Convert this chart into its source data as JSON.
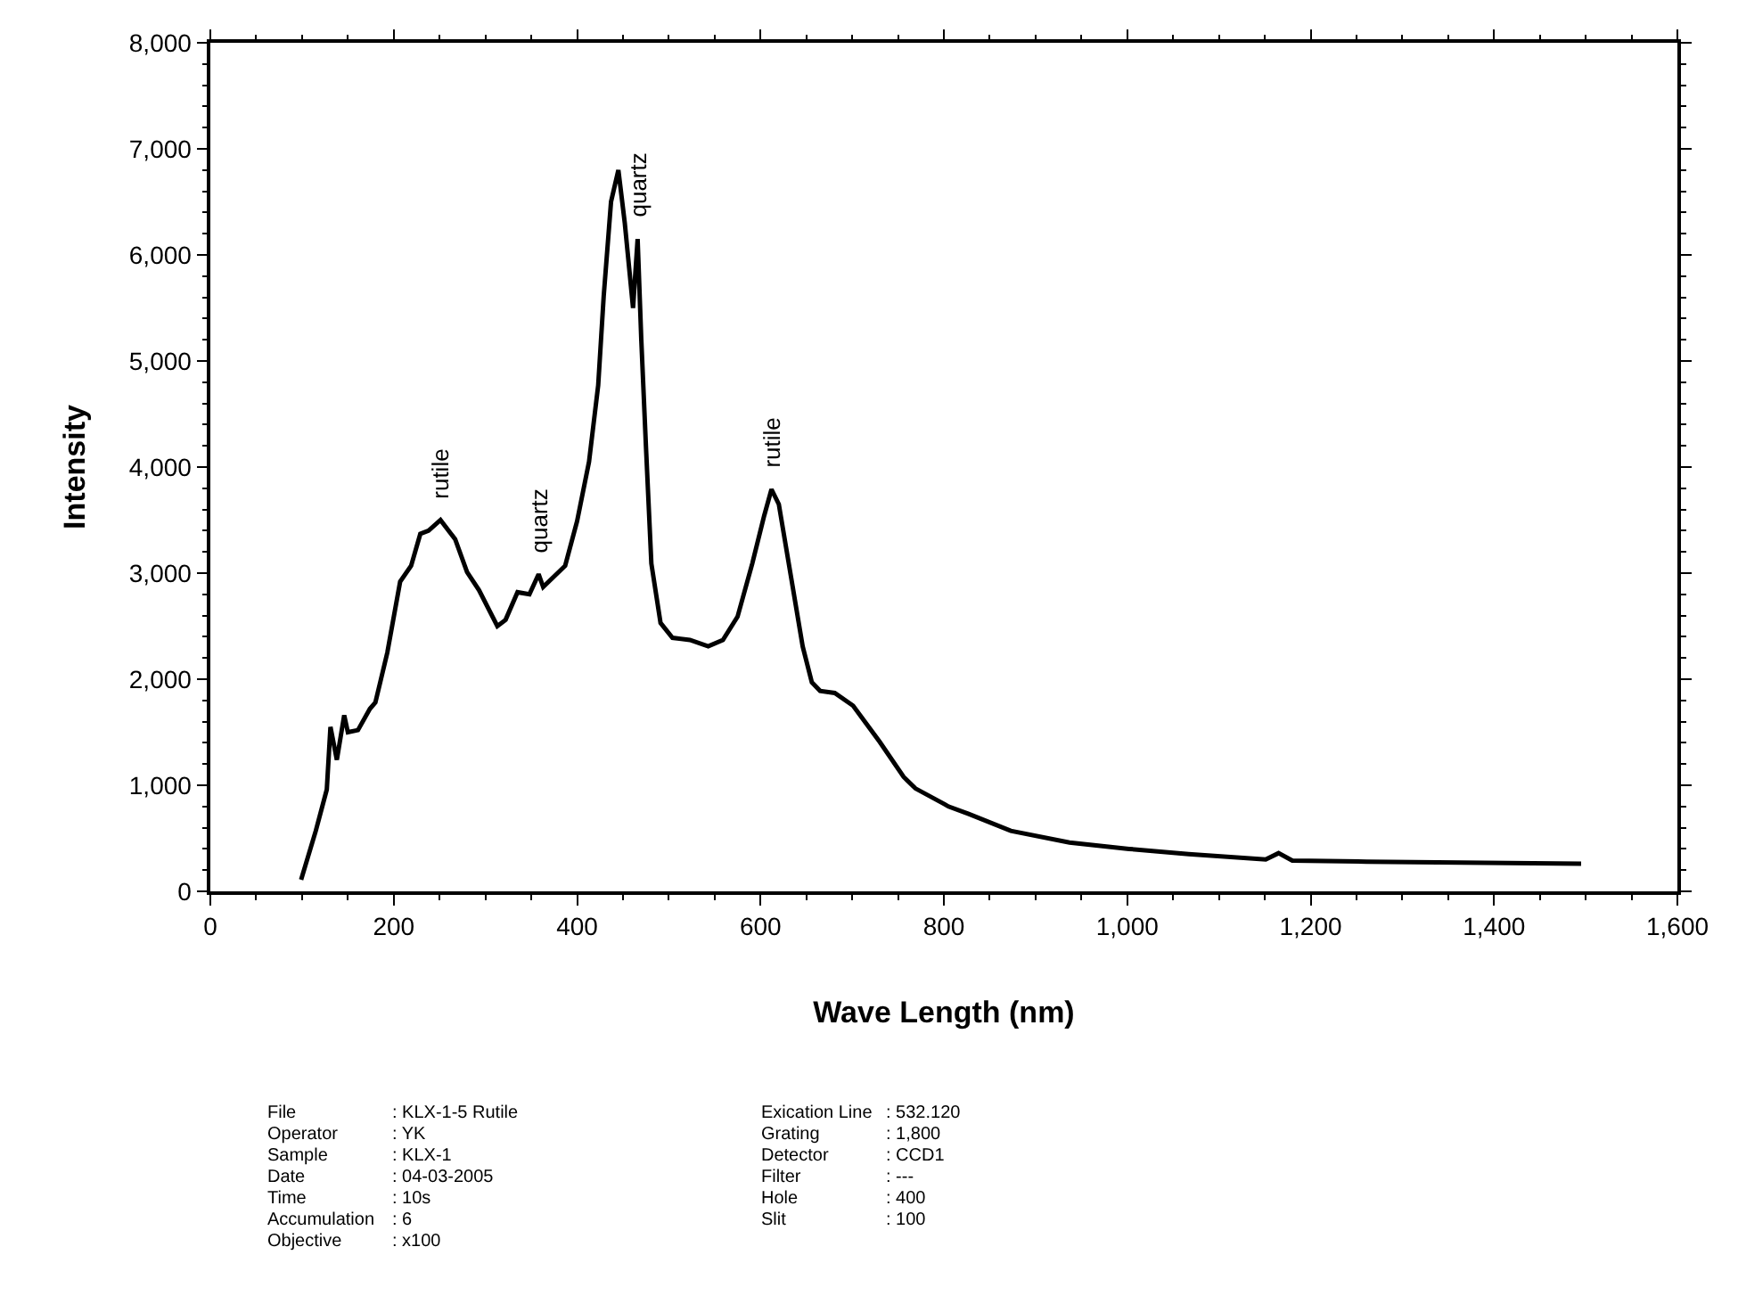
{
  "chart_data": {
    "type": "line",
    "xlabel": "Wave Length (nm)",
    "ylabel": "Intensity",
    "xlim": [
      0,
      1600
    ],
    "xticks": [
      0,
      {
        "value": 200,
        "label": "200"
      },
      {
        "value": 400,
        "label": "400"
      },
      {
        "value": 600,
        "label": "600"
      },
      {
        "value": 800,
        "label": "800"
      },
      {
        "value": 1000,
        "label": "1,000"
      },
      {
        "value": 1200,
        "label": "1,200"
      },
      {
        "value": 1400,
        "label": "1,400"
      },
      {
        "value": 1600,
        "label": "1,600"
      }
    ],
    "ylim": [
      0,
      8000
    ],
    "yticks": [
      0,
      {
        "value": 1000,
        "label": "1,000"
      },
      {
        "value": 2000,
        "label": "2,000"
      },
      {
        "value": 3000,
        "label": "3,000"
      },
      {
        "value": 4000,
        "label": "4,000"
      },
      {
        "value": 5000,
        "label": "5,000"
      },
      {
        "value": 6000,
        "label": "6,000"
      },
      {
        "value": 7000,
        "label": "7,000"
      },
      {
        "value": 8000,
        "label": "8,000"
      }
    ],
    "marker": "none",
    "line_style": "solid",
    "series": [
      {
        "color": "#000000",
        "x": [
          99,
          115,
          127,
          131,
          138,
          146,
          150,
          161,
          174,
          180,
          193,
          207,
          219,
          229,
          238,
          251,
          267,
          280,
          293,
          313,
          322,
          335,
          348,
          358,
          363,
          387,
          400,
          413,
          423,
          429,
          437,
          445,
          452,
          461,
          466,
          470,
          475,
          481,
          491,
          504,
          523,
          543,
          559,
          575,
          591,
          604,
          612,
          620,
          633,
          646,
          656,
          665,
          681,
          701,
          730,
          756,
          769,
          801,
          805,
          827,
          873,
          937,
          1002,
          1067,
          1151,
          1165,
          1180,
          1261,
          1390,
          1495
        ],
        "values": [
          110,
          570,
          960,
          1550,
          1240,
          1660,
          1500,
          1520,
          1720,
          1780,
          2250,
          2920,
          3070,
          3370,
          3400,
          3500,
          3320,
          3010,
          2840,
          2500,
          2560,
          2820,
          2800,
          2990,
          2870,
          3070,
          3490,
          4050,
          4770,
          5610,
          6500,
          6800,
          6300,
          5500,
          6150,
          5200,
          4210,
          3090,
          2530,
          2390,
          2370,
          2310,
          2370,
          2590,
          3090,
          3540,
          3790,
          3650,
          2980,
          2310,
          1970,
          1890,
          1870,
          1750,
          1410,
          1080,
          970,
          820,
          800,
          730,
          570,
          460,
          400,
          350,
          300,
          360,
          290,
          280,
          270,
          260
        ]
      }
    ],
    "annotations": [
      {
        "text": "rutile",
        "x": 251,
        "y": 3500
      },
      {
        "text": "quartz",
        "x": 358,
        "y": 2990
      },
      {
        "text": "quartz",
        "x": 466,
        "y": 6150
      },
      {
        "text": "rutile",
        "x": 612,
        "y": 3790
      },
      "File : KLX-1-5 Rutile",
      "Operator : YK",
      "Sample : KLX-1",
      "Date : 04-03-2005",
      "Time : 10s",
      "Accumulation : 6",
      "Objective : x100",
      "Exication Line : 532.120",
      "Grating : 1,800",
      "Detector : CCD1",
      "Filter : ---",
      "Hole : 400",
      "Slit : 100"
    ]
  }
}
